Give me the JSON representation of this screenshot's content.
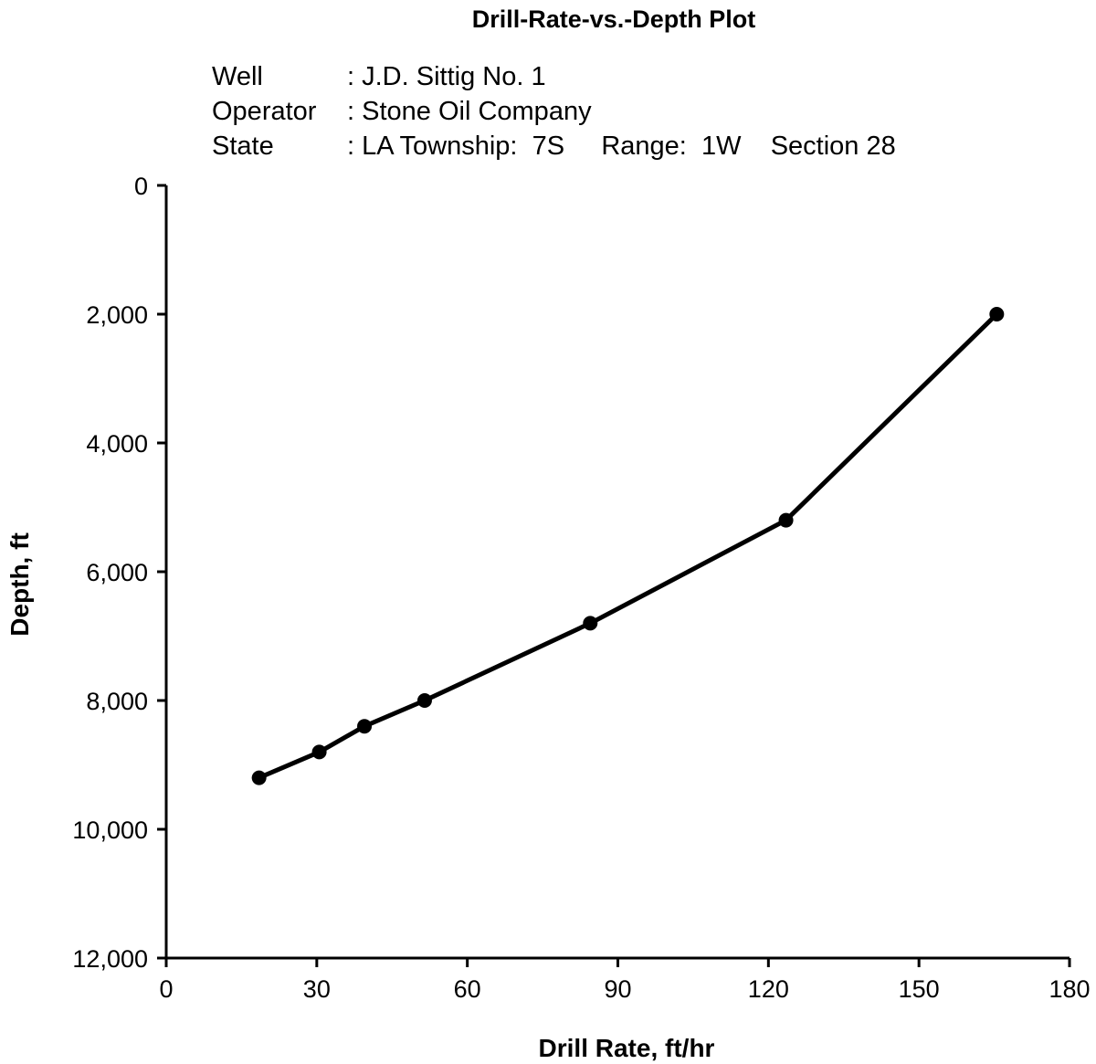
{
  "chart_data": {
    "type": "line",
    "title": "Drill-Rate-vs.-Depth Plot",
    "info": [
      {
        "key": "Well",
        "value": ": J.D. Sittig No. 1"
      },
      {
        "key": "Operator",
        "value": ": Stone Oil Company"
      },
      {
        "key": "State",
        "value": ": LA Township:  7S     Range:  1W    Section 28"
      }
    ],
    "xlabel": "Drill Rate, ft/hr",
    "ylabel": "Depth, ft",
    "xlim": [
      0,
      180
    ],
    "ylim": [
      0,
      12000
    ],
    "y_inverted": true,
    "grid": false,
    "x_ticks": [
      0,
      30,
      60,
      90,
      120,
      150,
      180
    ],
    "x_tick_labels": [
      "0",
      "30",
      "60",
      "90",
      "120",
      "150",
      "180"
    ],
    "y_ticks": [
      0,
      2000,
      4000,
      6000,
      8000,
      10000,
      12000
    ],
    "y_tick_labels": [
      "0",
      "2,000",
      "4,000",
      "6,000",
      "8,000",
      "10,000",
      "12,000"
    ],
    "series": [
      {
        "color": "#000000",
        "x": [
          18.5,
          30.5,
          39.5,
          51.5,
          84.5,
          123.5,
          165.5
        ],
        "y": [
          9200,
          8800,
          8400,
          8000,
          6800,
          5200,
          2000
        ]
      }
    ]
  }
}
